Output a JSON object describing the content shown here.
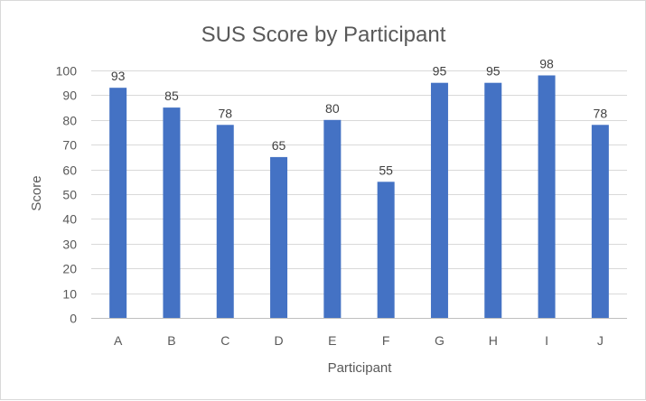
{
  "chart_data": {
    "type": "bar",
    "title": "SUS Score by Participant",
    "xlabel": "Participant",
    "ylabel": "Score",
    "categories": [
      "A",
      "B",
      "C",
      "D",
      "E",
      "F",
      "G",
      "H",
      "I",
      "J"
    ],
    "values": [
      93,
      85,
      78,
      65,
      80,
      55,
      95,
      95,
      98,
      78
    ],
    "ylim": [
      0,
      100
    ],
    "yticks": [
      0,
      10,
      20,
      30,
      40,
      50,
      60,
      70,
      80,
      90,
      100
    ],
    "grid": true,
    "legend": "none",
    "bar_color": "#4472c4"
  }
}
